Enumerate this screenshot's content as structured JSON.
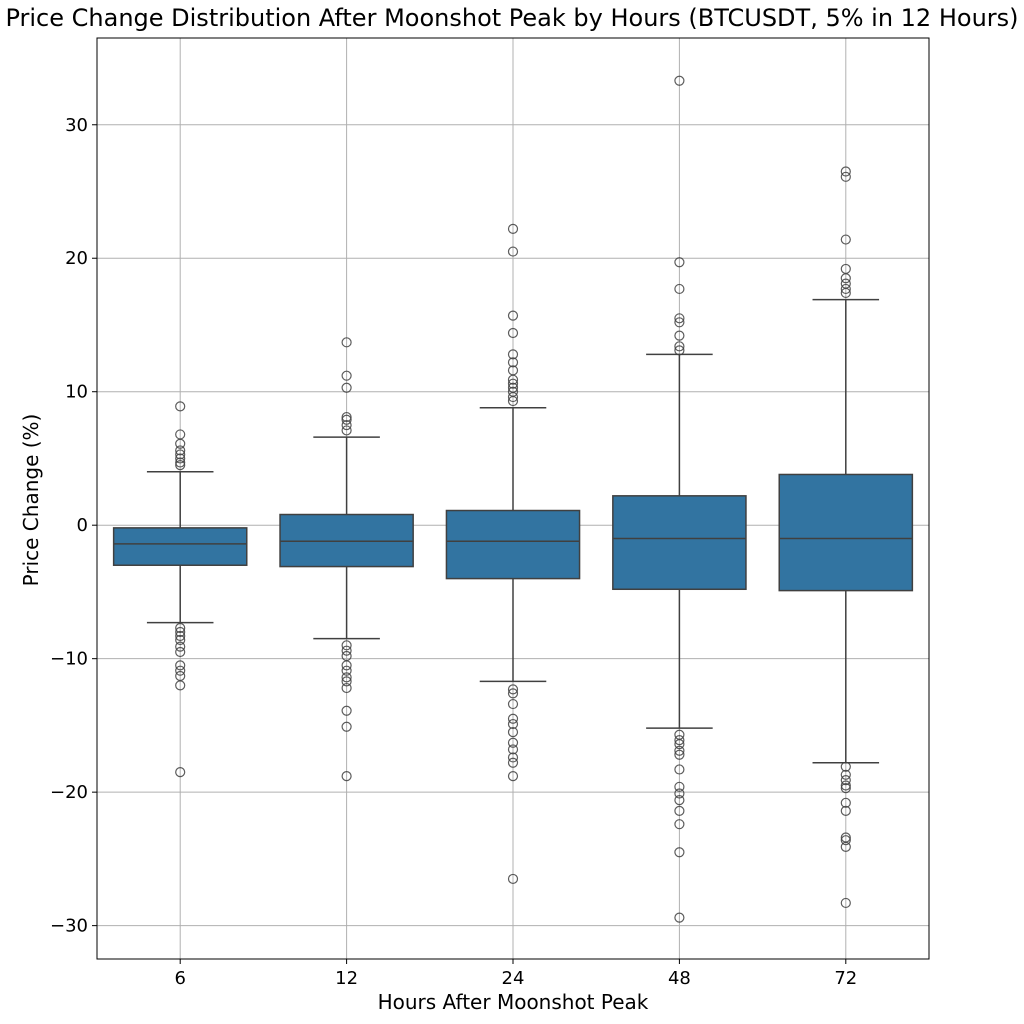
{
  "chart_data": {
    "type": "box",
    "title": "Price Change Distribution After Moonshot Peak by Hours (BTCUSDT, 5% in 12 Hours)",
    "xlabel": "Hours After Moonshot Peak",
    "ylabel": "Price Change (%)",
    "categories": [
      "6",
      "12",
      "24",
      "48",
      "72"
    ],
    "ylim": [
      -32.5,
      36.5
    ],
    "yticks": [
      30,
      20,
      10,
      0,
      -10,
      -20,
      -30
    ],
    "ytick_labels": [
      "30",
      "20",
      "10",
      "0",
      "−10",
      "−20",
      "−30"
    ],
    "grid": true,
    "box_color": "#3274a1",
    "line_color": "#404040",
    "boxes": [
      {
        "category": "6",
        "whisker_low": -7.3,
        "q1": -3.0,
        "median": -1.4,
        "q3": -0.2,
        "whisker_high": 4.0,
        "outliers_high": [
          4.5,
          4.7,
          5.0,
          5.3,
          5.6,
          6.1,
          6.8,
          8.9
        ],
        "outliers_low": [
          -7.7,
          -8.0,
          -8.3,
          -8.6,
          -9.1,
          -9.5,
          -10.5,
          -10.9,
          -11.3,
          -12.0,
          -18.5
        ]
      },
      {
        "category": "12",
        "whisker_low": -8.5,
        "q1": -3.1,
        "median": -1.2,
        "q3": 0.8,
        "whisker_high": 6.6,
        "outliers_high": [
          7.1,
          7.5,
          7.9,
          8.1,
          10.3,
          11.2,
          13.7
        ],
        "outliers_low": [
          -9.0,
          -9.4,
          -9.8,
          -10.5,
          -10.9,
          -11.4,
          -11.7,
          -12.2,
          -13.9,
          -15.1,
          -18.8
        ]
      },
      {
        "category": "24",
        "whisker_low": -11.7,
        "q1": -4.0,
        "median": -1.2,
        "q3": 1.1,
        "whisker_high": 8.8,
        "outliers_high": [
          9.3,
          9.6,
          10.0,
          10.3,
          10.6,
          10.9,
          11.6,
          12.2,
          12.8,
          14.4,
          15.7,
          20.5,
          22.2
        ],
        "outliers_low": [
          -12.3,
          -12.6,
          -13.4,
          -14.5,
          -14.9,
          -15.5,
          -16.3,
          -16.8,
          -17.4,
          -17.8,
          -18.8,
          -26.5
        ]
      },
      {
        "category": "48",
        "whisker_low": -15.2,
        "q1": -4.8,
        "median": -1.0,
        "q3": 2.2,
        "whisker_high": 12.8,
        "outliers_high": [
          13.1,
          13.4,
          14.2,
          15.2,
          15.5,
          17.7,
          19.7,
          33.3
        ],
        "outliers_low": [
          -15.7,
          -16.1,
          -16.4,
          -16.9,
          -17.2,
          -18.3,
          -19.6,
          -20.1,
          -20.6,
          -21.4,
          -22.4,
          -24.5,
          -29.4
        ]
      },
      {
        "category": "72",
        "whisker_low": -17.8,
        "q1": -4.9,
        "median": -1.0,
        "q3": 3.8,
        "whisker_high": 16.9,
        "outliers_high": [
          17.4,
          17.7,
          18.1,
          18.5,
          19.2,
          21.4,
          26.1,
          26.5
        ],
        "outliers_low": [
          -18.1,
          -18.7,
          -19.1,
          -19.5,
          -19.7,
          -20.8,
          -21.4,
          -23.4,
          -23.6,
          -24.1,
          -28.3
        ]
      }
    ]
  }
}
